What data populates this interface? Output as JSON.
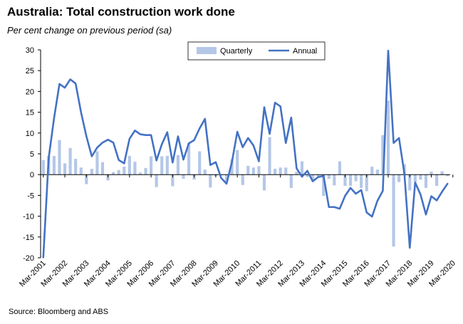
{
  "title": "Australia: Total construction work done",
  "subtitle": "Per cent change on previous period (sa)",
  "source": "Source: Bloomberg and ABS",
  "chart_data": {
    "type": "bar+line",
    "ylim": [
      -20,
      30
    ],
    "yticks": [
      -20,
      -15,
      -10,
      -5,
      0,
      5,
      10,
      15,
      20,
      25,
      30
    ],
    "xticks": [
      "Mar-2001",
      "Mar-2002",
      "Mar-2003",
      "Mar-2004",
      "Mar-2005",
      "Mar-2006",
      "Mar-2007",
      "Mar-2008",
      "Mar-2009",
      "Mar-2010",
      "Mar-2011",
      "Mar-2012",
      "Mar-2013",
      "Mar-2014",
      "Mar-2015",
      "Mar-2016",
      "Mar-2017",
      "Mar-2018",
      "Mar-2019",
      "Mar-2020"
    ],
    "legend_position": "top-center",
    "grid": false,
    "colors": {
      "quarterly": "#b4c7e7",
      "annual": "#4472c4",
      "axis": "#000000"
    },
    "series": [
      {
        "name": "Quarterly",
        "type": "bar",
        "values": [
          3.5,
          4.5,
          4.5,
          8.3,
          2.7,
          6.4,
          3.8,
          1.7,
          -2.3,
          1.4,
          5.6,
          3.0,
          -1.4,
          0.6,
          1.1,
          1.9,
          4.5,
          3.1,
          0.5,
          1.6,
          4.4,
          -3.0,
          4.4,
          4.5,
          -2.8,
          4.7,
          -1.0,
          7.5,
          -1.2,
          5.6,
          1.2,
          -3.1,
          -0.3,
          -0.2,
          -1.6,
          3.7,
          5.9,
          -2.5,
          2.1,
          1.7,
          2.0,
          -3.8,
          9.0,
          1.4,
          1.7,
          1.7,
          -3.2,
          0.7,
          3.2,
          -0.6,
          -1.6,
          -0.4,
          -5.1,
          -1.0,
          -2.6,
          3.2,
          -2.7,
          -2.7,
          -1.6,
          -3.2,
          -4.0,
          1.9,
          1.2,
          9.5,
          17.8,
          -17.3,
          -1.8,
          2.5,
          -3.8,
          -1.8,
          -1.2,
          -3.2,
          0.7,
          -2.7,
          0.8,
          -0.4
        ]
      },
      {
        "name": "Annual",
        "type": "line",
        "values": [
          -19.9,
          4.0,
          13.6,
          21.8,
          20.9,
          22.9,
          21.9,
          15.0,
          9.2,
          4.4,
          6.5,
          7.7,
          8.4,
          7.7,
          3.5,
          2.7,
          8.6,
          10.6,
          9.7,
          9.5,
          9.5,
          3.4,
          7.3,
          10.2,
          2.9,
          9.2,
          3.6,
          7.5,
          8.3,
          11.1,
          13.4,
          2.3,
          3.0,
          -0.8,
          -2.2,
          3.0,
          10.3,
          6.6,
          8.8,
          7.0,
          3.2,
          16.2,
          9.8,
          17.3,
          16.4,
          7.6,
          13.7,
          1.5,
          -0.5,
          0.9,
          -1.6,
          -0.6,
          -0.3,
          -7.8,
          -7.8,
          -8.2,
          -5.1,
          -3.2,
          -4.6,
          -3.7,
          -9.1,
          -10.1,
          -6.3,
          -3.9,
          29.8,
          7.6,
          8.8,
          0.3,
          -17.6,
          -1.9,
          -4.8,
          -9.6,
          -5.2,
          -6.2,
          -4.1,
          -2.2
        ]
      }
    ]
  }
}
